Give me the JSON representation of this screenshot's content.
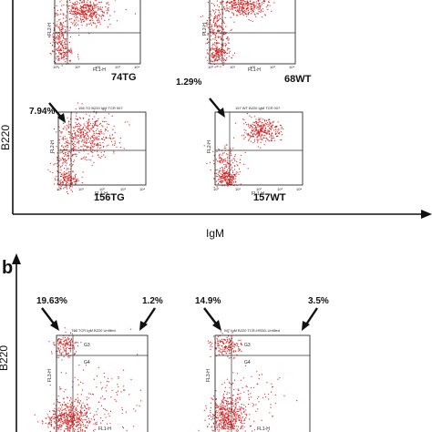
{
  "figure": {
    "panel_b_letter": "b",
    "panel_a": {
      "y_axis_label": "B220",
      "x_axis_label": "IgM",
      "plots": [
        {
          "id": "74TG",
          "sample": "74TG",
          "header": "",
          "percent": "",
          "channel_x": "FL1-H",
          "channel_y": "FL2-H"
        },
        {
          "id": "68WT",
          "sample": "68WT",
          "header": "",
          "percent": "1.29%",
          "channel_x": "FL1-H",
          "channel_y": "FL2-H"
        },
        {
          "id": "156TG",
          "sample": "156TG",
          "header": "156 TG B220 IgM TCR 007",
          "percent": "7.94%",
          "channel_x": "FL1-H",
          "channel_y": "FL2-H"
        },
        {
          "id": "157WT",
          "sample": "157WT",
          "header": "157 WT B220 IgM TCR 007",
          "percent": "",
          "channel_x": "FL1-H",
          "channel_y": "FL2-H"
        }
      ]
    },
    "panel_b": {
      "y_axis_label": "B220",
      "plots": [
        {
          "id": "b-left",
          "header": "T08 TCR IgM B220 Unfilled",
          "percent_left": "19.63%",
          "percent_right": "1.2%",
          "gate_a": "G3",
          "gate_b": "G4",
          "channel_x": "FL1-H",
          "channel_y": "FL3-H"
        },
        {
          "id": "b-right",
          "header": "WT IgM B220 TCR-HSDD-Unfilled",
          "percent_left": "14.9%",
          "percent_right": "3.5%",
          "gate_a": "G3",
          "gate_b": "G4",
          "channel_x": "FL1-H",
          "channel_y": "FL3-H"
        }
      ]
    },
    "tick_labels": [
      "10⁰",
      "10¹",
      "10²",
      "10³",
      "10⁴"
    ],
    "colors": {
      "dots": "#d81e1e",
      "axes": "#111111",
      "gate": "#333333"
    }
  }
}
